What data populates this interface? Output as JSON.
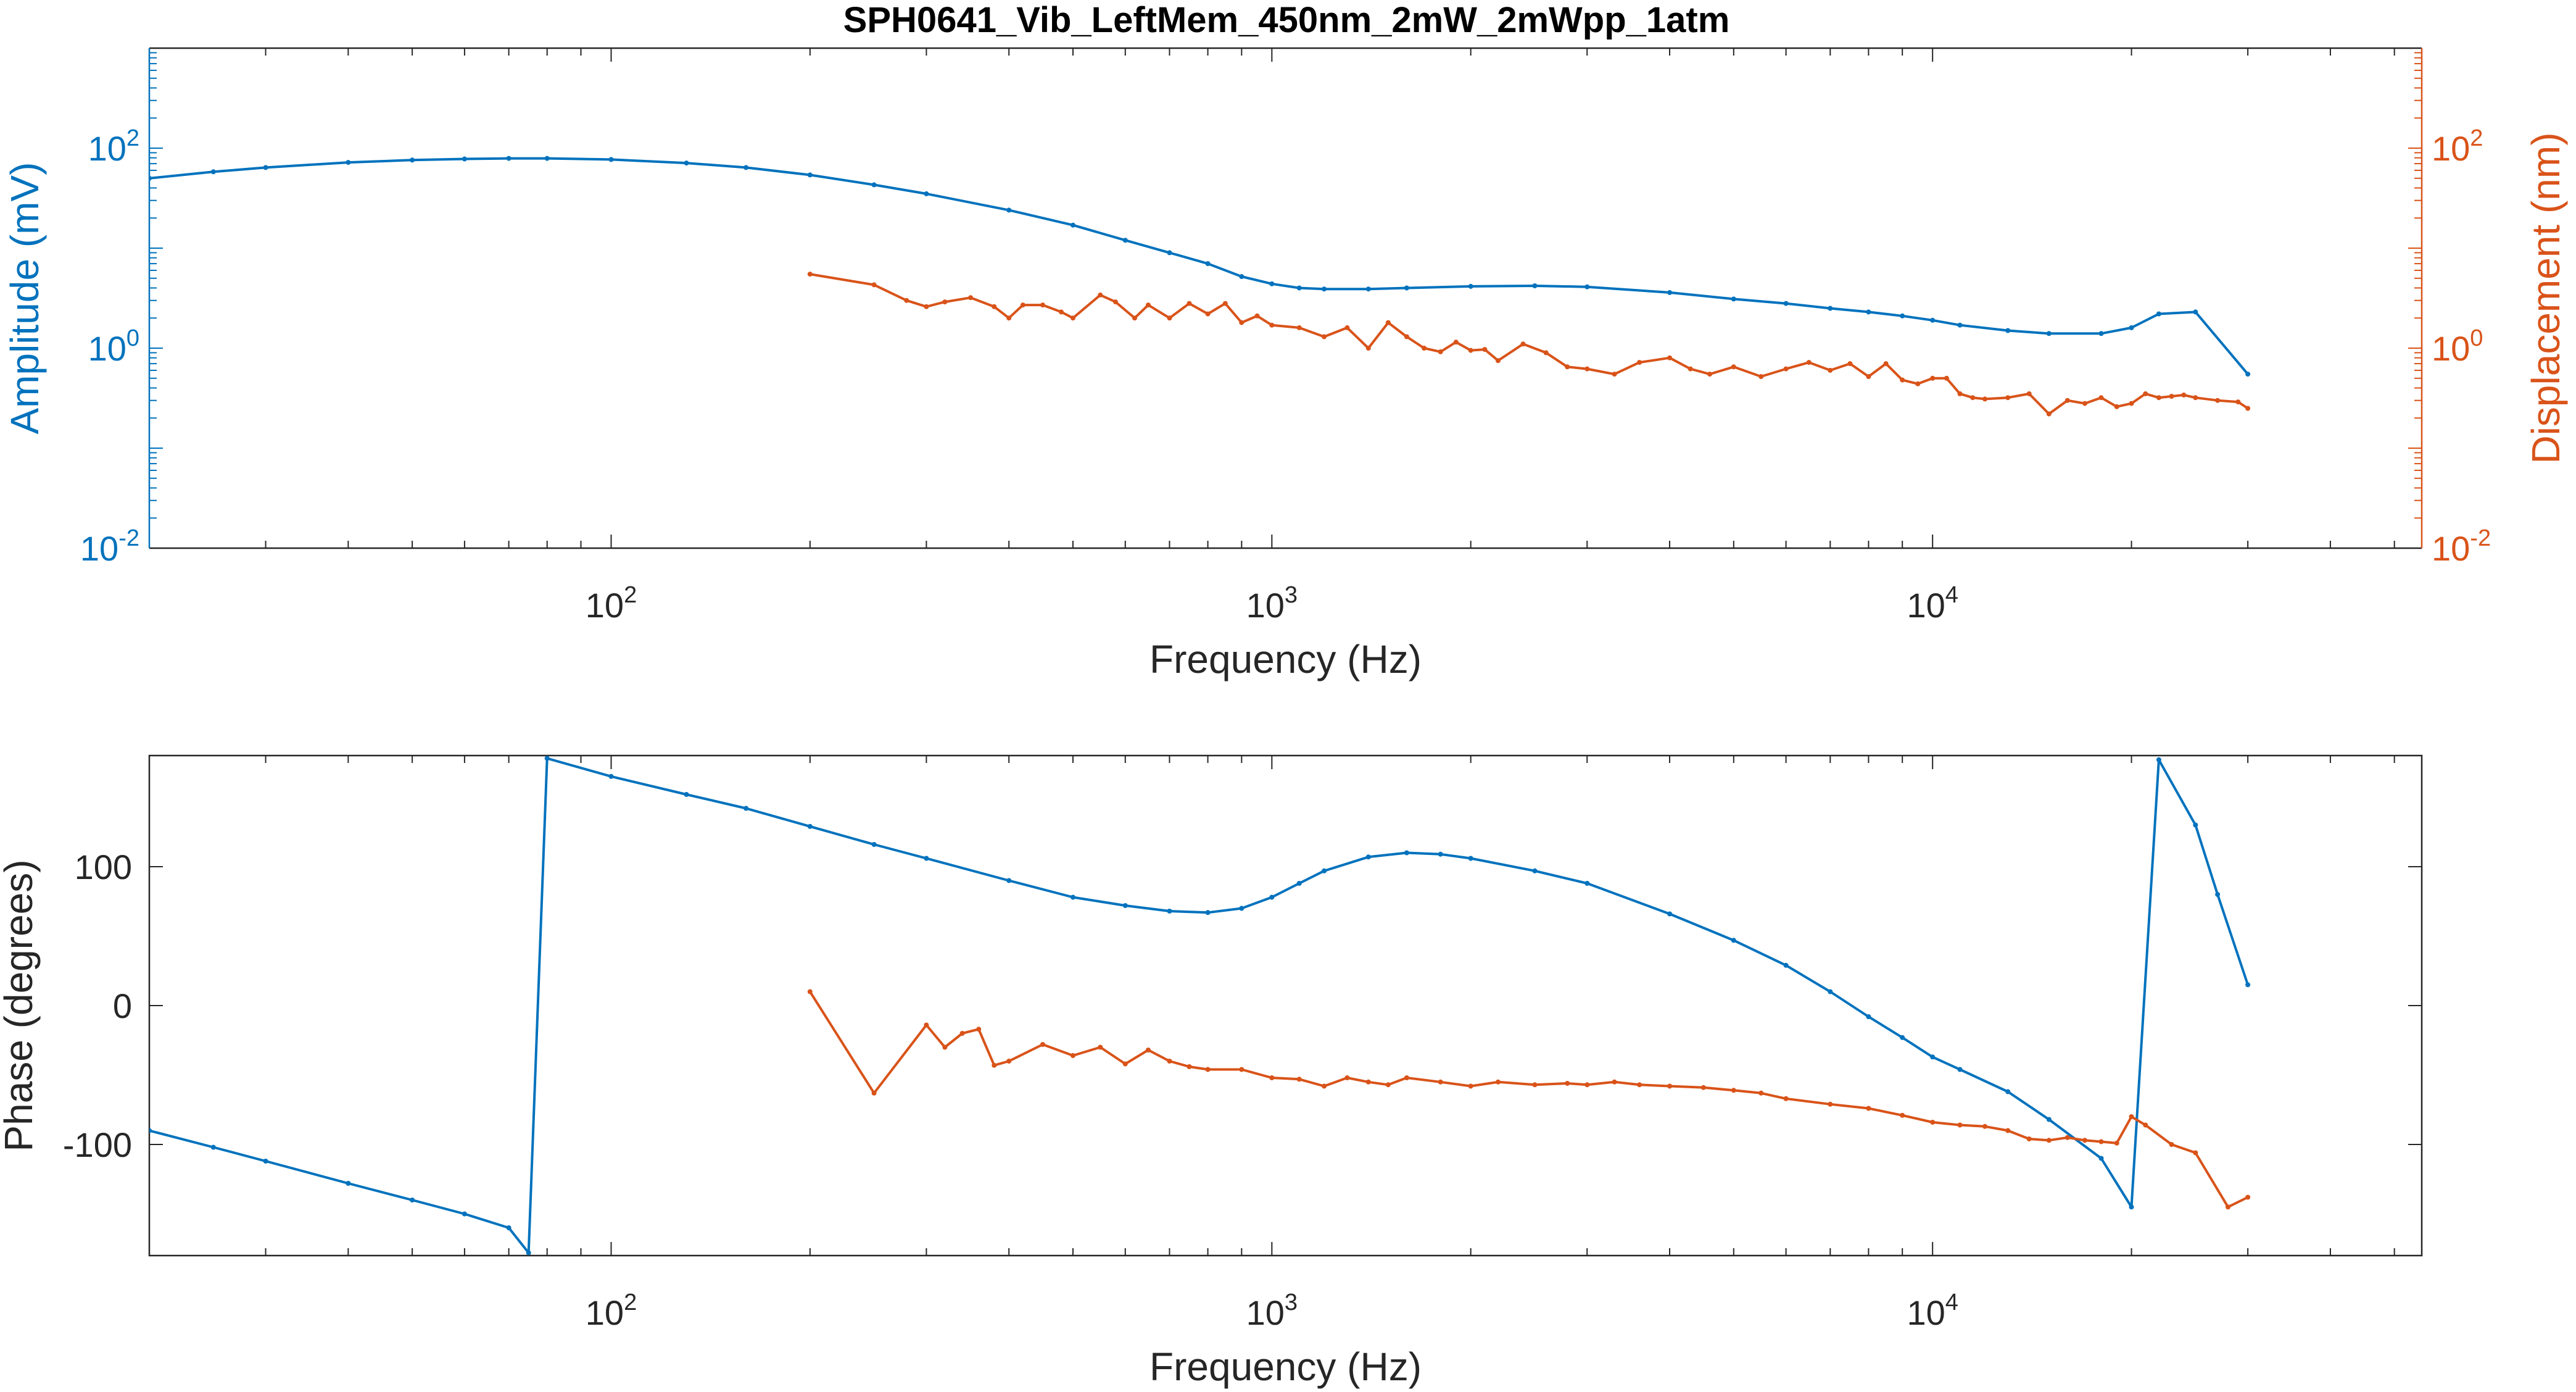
{
  "figure": {
    "title": "SPH0641_Vib_LeftMem_450nm_2mW_2mWpp_1atm"
  },
  "colors": {
    "blue": "#0072BD",
    "orange": "#D95319",
    "axis": "#262626",
    "grid": "#c8c8c8"
  },
  "chart_data": [
    {
      "type": "line",
      "panel": "top",
      "xlabel": "Frequency (Hz)",
      "ylabel_left": "Amplitude (mV)",
      "ylabel_right": "Displacement (nm)",
      "xscale": "log",
      "yscale": "log",
      "xlim": [
        20,
        55000
      ],
      "ylim_left": [
        0.01,
        1000
      ],
      "ylim_right": [
        0.01,
        1000
      ],
      "x_ticks": [
        {
          "base": "10",
          "exp": "2"
        },
        {
          "base": "10",
          "exp": "3"
        },
        {
          "base": "10",
          "exp": "4"
        }
      ],
      "y_ticks_left": [
        {
          "base": "10",
          "exp": "-2"
        },
        {
          "base": "10",
          "exp": "0"
        },
        {
          "base": "10",
          "exp": "2"
        }
      ],
      "y_ticks_right": [
        {
          "base": "10",
          "exp": "-2"
        },
        {
          "base": "10",
          "exp": "0"
        },
        {
          "base": "10",
          "exp": "2"
        }
      ],
      "series": [
        {
          "axis": "left",
          "color": "#0072BD",
          "x": [
            20,
            25,
            30,
            40,
            50,
            60,
            70,
            80,
            100,
            130,
            160,
            200,
            250,
            300,
            400,
            500,
            600,
            700,
            800,
            900,
            1000,
            1100,
            1200,
            1400,
            1600,
            2000,
            2500,
            3000,
            4000,
            5000,
            6000,
            7000,
            8000,
            9000,
            10000,
            11000,
            13000,
            15000,
            18000,
            20000,
            22000,
            25000,
            30000
          ],
          "y": [
            50,
            58,
            64,
            72,
            76,
            78,
            79,
            79,
            77,
            71,
            64,
            54,
            43,
            35,
            24,
            17,
            12,
            9,
            7,
            5.2,
            4.4,
            4.0,
            3.9,
            3.9,
            4.0,
            4.15,
            4.2,
            4.1,
            3.6,
            3.1,
            2.8,
            2.5,
            2.3,
            2.1,
            1.9,
            1.7,
            1.5,
            1.4,
            1.4,
            1.6,
            2.2,
            2.3,
            0.55
          ]
        },
        {
          "axis": "right",
          "color": "#D95319",
          "x": [
            200,
            250,
            280,
            300,
            320,
            350,
            380,
            400,
            420,
            450,
            480,
            500,
            550,
            580,
            620,
            650,
            700,
            750,
            800,
            850,
            900,
            950,
            1000,
            1100,
            1200,
            1300,
            1400,
            1500,
            1600,
            1700,
            1800,
            1900,
            2000,
            2100,
            2200,
            2400,
            2600,
            2800,
            3000,
            3300,
            3600,
            4000,
            4300,
            4600,
            5000,
            5500,
            6000,
            6500,
            7000,
            7500,
            8000,
            8500,
            9000,
            9500,
            10000,
            10500,
            11000,
            11500,
            12000,
            13000,
            14000,
            15000,
            16000,
            17000,
            18000,
            19000,
            20000,
            21000,
            22000,
            23000,
            24000,
            25000,
            27000,
            29000,
            30000
          ],
          "y": [
            5.5,
            4.3,
            3.0,
            2.6,
            2.9,
            3.2,
            2.6,
            2.0,
            2.7,
            2.7,
            2.3,
            2.0,
            3.4,
            2.9,
            2.0,
            2.7,
            2.0,
            2.8,
            2.2,
            2.8,
            1.8,
            2.1,
            1.7,
            1.6,
            1.3,
            1.6,
            1.0,
            1.8,
            1.3,
            1.0,
            0.92,
            1.15,
            0.95,
            0.97,
            0.75,
            1.1,
            0.9,
            0.65,
            0.62,
            0.55,
            0.72,
            0.8,
            0.62,
            0.55,
            0.65,
            0.52,
            0.62,
            0.72,
            0.6,
            0.7,
            0.52,
            0.7,
            0.48,
            0.44,
            0.5,
            0.5,
            0.35,
            0.32,
            0.31,
            0.32,
            0.35,
            0.22,
            0.3,
            0.28,
            0.32,
            0.26,
            0.28,
            0.35,
            0.32,
            0.33,
            0.34,
            0.32,
            0.3,
            0.29,
            0.25
          ]
        }
      ]
    },
    {
      "type": "line",
      "panel": "bottom",
      "xlabel": "Frequency (Hz)",
      "ylabel": "Phase (degrees)",
      "xscale": "log",
      "yscale": "linear",
      "xlim": [
        20,
        55000
      ],
      "ylim": [
        -180,
        180
      ],
      "x_ticks": [
        {
          "base": "10",
          "exp": "2"
        },
        {
          "base": "10",
          "exp": "3"
        },
        {
          "base": "10",
          "exp": "4"
        }
      ],
      "y_ticks": [
        {
          "value": -100,
          "label": "-100"
        },
        {
          "value": 0,
          "label": "0"
        },
        {
          "value": 100,
          "label": "100"
        }
      ],
      "series": [
        {
          "color": "#0072BD",
          "x": [
            20,
            25,
            30,
            40,
            50,
            60,
            70,
            75,
            80,
            100,
            130,
            160,
            200,
            250,
            300,
            400,
            500,
            600,
            700,
            800,
            900,
            1000,
            1100,
            1200,
            1400,
            1600,
            1800,
            2000,
            2500,
            3000,
            4000,
            5000,
            6000,
            7000,
            8000,
            9000,
            10000,
            11000,
            13000,
            15000,
            18000,
            20000,
            22000,
            25000,
            27000,
            30000
          ],
          "y": [
            -90,
            -102,
            -112,
            -128,
            -140,
            -150,
            -160,
            -178,
            178,
            165,
            152,
            142,
            129,
            116,
            106,
            90,
            78,
            72,
            68,
            67,
            70,
            78,
            88,
            97,
            107,
            110,
            109,
            106,
            97,
            88,
            66,
            47,
            29,
            10,
            -8,
            -23,
            -37,
            -46,
            -62,
            -82,
            -110,
            -145,
            177,
            130,
            80,
            15
          ]
        },
        {
          "color": "#D95319",
          "x": [
            200,
            250,
            300,
            320,
            340,
            360,
            380,
            400,
            450,
            500,
            550,
            600,
            650,
            700,
            750,
            800,
            900,
            1000,
            1100,
            1200,
            1300,
            1400,
            1500,
            1600,
            1800,
            2000,
            2200,
            2500,
            2800,
            3000,
            3300,
            3600,
            4000,
            4500,
            5000,
            5500,
            6000,
            7000,
            8000,
            9000,
            10000,
            11000,
            12000,
            13000,
            14000,
            15000,
            16000,
            17000,
            18000,
            19000,
            20000,
            21000,
            23000,
            25000,
            28000,
            30000
          ],
          "y": [
            10,
            -63,
            -14,
            -30,
            -20,
            -17,
            -43,
            -40,
            -28,
            -36,
            -30,
            -42,
            -32,
            -40,
            -44,
            -46,
            -46,
            -52,
            -53,
            -58,
            -52,
            -55,
            -57,
            -52,
            -55,
            -58,
            -55,
            -57,
            -56,
            -57,
            -55,
            -57,
            -58,
            -59,
            -61,
            -63,
            -67,
            -71,
            -74,
            -79,
            -84,
            -86,
            -87,
            -90,
            -96,
            -97,
            -95,
            -97,
            -98,
            -99,
            -80,
            -86,
            -100,
            -106,
            -145,
            -138
          ]
        }
      ]
    }
  ]
}
